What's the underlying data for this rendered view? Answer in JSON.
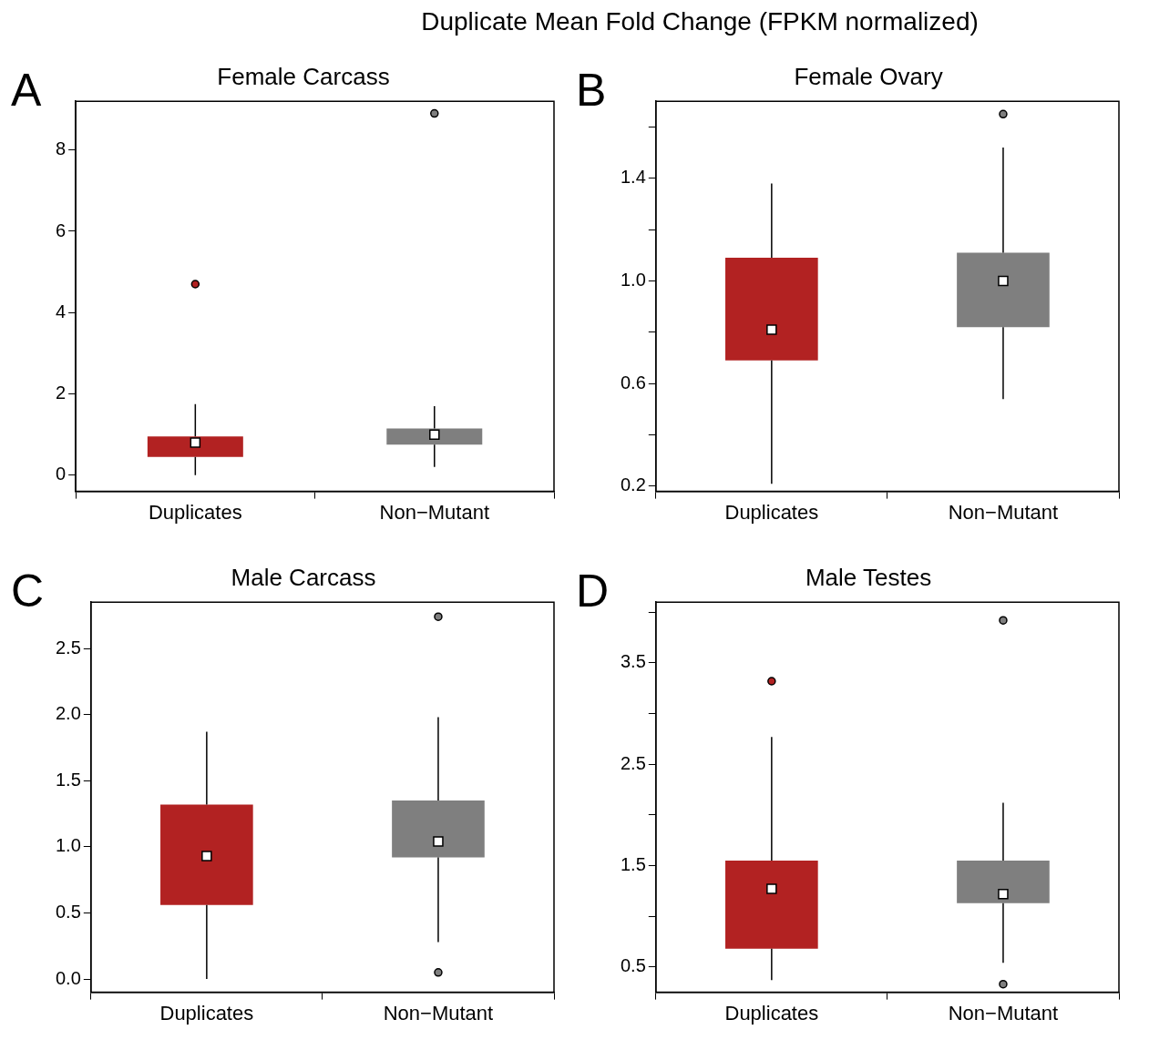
{
  "chart_data": [
    {
      "type": "box",
      "title": "Female Carcass",
      "annotations": [
        "Duplicate Mean Fold Change (FPKM normalized)",
        "A"
      ],
      "categories": [
        "Duplicates",
        "Non−Mutant"
      ],
      "colors": [
        "#b22222",
        "#7f7f7f"
      ],
      "boxes": [
        {
          "low": 0,
          "q1": 0.45,
          "median": 0.8,
          "q3": 0.95,
          "high": 1.75,
          "outliers": [
            4.7
          ]
        },
        {
          "low": 0.2,
          "q1": 0.75,
          "median": 1.0,
          "q3": 1.15,
          "high": 1.7,
          "outliers": [
            8.9
          ]
        }
      ],
      "ylim": [
        -0.4,
        9.2
      ],
      "yticks": [
        0,
        2,
        4,
        6,
        8
      ],
      "grid": false
    },
    {
      "type": "box",
      "title": "Female Ovary",
      "annotations": [
        "B"
      ],
      "categories": [
        "Duplicates",
        "Non−Mutant"
      ],
      "colors": [
        "#b22222",
        "#7f7f7f"
      ],
      "boxes": [
        {
          "low": 0.21,
          "q1": 0.69,
          "median": 0.81,
          "q3": 1.09,
          "high": 1.38
        },
        {
          "low": 0.54,
          "q1": 0.82,
          "median": 1.0,
          "q3": 1.11,
          "high": 1.52,
          "outliers": [
            1.65
          ]
        }
      ],
      "ylim": [
        0.18,
        1.7
      ],
      "yticks": [
        0.2,
        {
          "value": 0.4,
          "label": null
        },
        0.6,
        {
          "value": 0.8,
          "label": null
        },
        {
          "value": 1,
          "label": "1.0"
        },
        {
          "value": 1.2,
          "label": null
        },
        1.4,
        {
          "value": 1.6,
          "label": null
        }
      ],
      "grid": false
    },
    {
      "type": "box",
      "title": "Male Carcass",
      "annotations": [
        "C"
      ],
      "categories": [
        "Duplicates",
        "Non−Mutant"
      ],
      "colors": [
        "#b22222",
        "#7f7f7f"
      ],
      "boxes": [
        {
          "low": 0,
          "q1": 0.56,
          "median": 0.93,
          "q3": 1.32,
          "high": 1.87
        },
        {
          "low": 0.28,
          "q1": 0.92,
          "median": 1.04,
          "q3": 1.35,
          "high": 1.98,
          "outliers": [
            0.05,
            2.74
          ]
        }
      ],
      "ylim": [
        -0.1,
        2.85
      ],
      "yticks": [
        {
          "value": 0,
          "label": "0.0"
        },
        0.5,
        {
          "value": 1,
          "label": "1.0"
        },
        1.5,
        {
          "value": 2,
          "label": "2.0"
        },
        2.5
      ],
      "grid": false
    },
    {
      "type": "box",
      "title": "Male Testes",
      "annotations": [
        "D"
      ],
      "categories": [
        "Duplicates",
        "Non−Mutant"
      ],
      "colors": [
        "#b22222",
        "#7f7f7f"
      ],
      "boxes": [
        {
          "low": 0.37,
          "q1": 0.68,
          "median": 1.27,
          "q3": 1.55,
          "high": 2.77,
          "outliers": [
            3.32
          ]
        },
        {
          "low": 0.54,
          "q1": 1.13,
          "median": 1.22,
          "q3": 1.55,
          "high": 2.12,
          "outliers": [
            0.33,
            3.92
          ]
        }
      ],
      "ylim": [
        0.25,
        4.1
      ],
      "yticks": [
        0.5,
        {
          "value": 1.0,
          "label": null
        },
        1.5,
        {
          "value": 2.0,
          "label": null
        },
        2.5,
        {
          "value": 3.0,
          "label": null
        },
        3.5,
        {
          "value": 4.0,
          "label": null
        }
      ],
      "grid": false
    }
  ]
}
